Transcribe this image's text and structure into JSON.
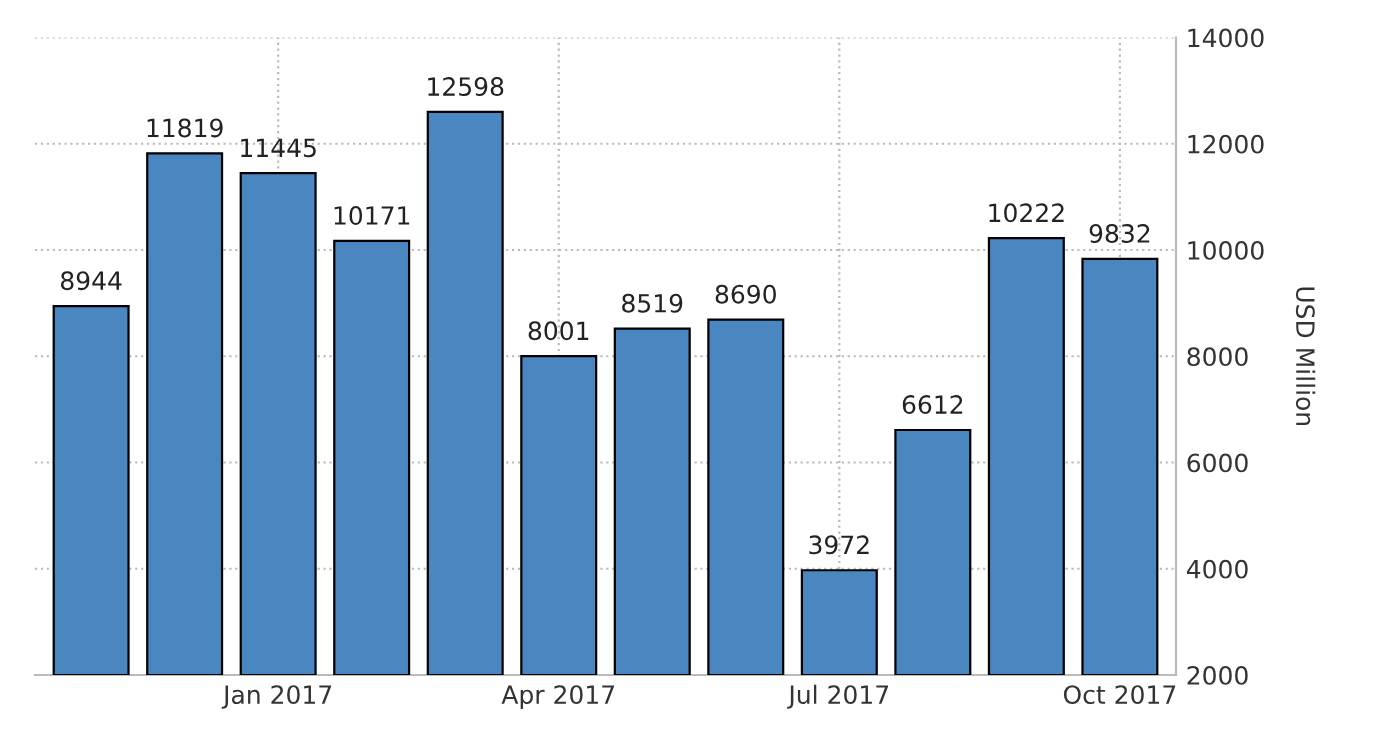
{
  "chart_data": {
    "type": "bar",
    "ylabel": "USD Million",
    "categories": [
      null,
      null,
      "Jan 2017",
      null,
      null,
      "Apr 2017",
      null,
      null,
      "Jul 2017",
      null,
      null,
      "Oct 2017"
    ],
    "values": [
      8944,
      11819,
      11445,
      10171,
      12598,
      8001,
      8519,
      8690,
      3972,
      6612,
      10222,
      9832
    ],
    "color": "#4a86c0",
    "data_labels": true,
    "ylim": [
      2000,
      14000
    ],
    "yticks": [
      2000,
      4000,
      6000,
      8000,
      10000,
      12000,
      14000
    ],
    "grid": true
  }
}
